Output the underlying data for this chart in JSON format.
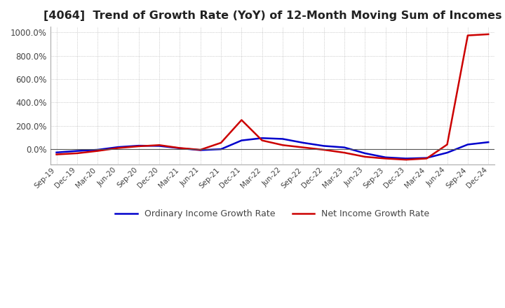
{
  "title": "[4064]  Trend of Growth Rate (YoY) of 12-Month Moving Sum of Incomes",
  "title_fontsize": 11.5,
  "ylim": [
    -130,
    1050
  ],
  "yticks": [
    0.0,
    200.0,
    400.0,
    600.0,
    800.0,
    1000.0
  ],
  "background_color": "#ffffff",
  "grid_color": "#aaaaaa",
  "x_labels": [
    "Sep-19",
    "Dec-19",
    "Mar-20",
    "Jun-20",
    "Sep-20",
    "Dec-20",
    "Mar-21",
    "Jun-21",
    "Sep-21",
    "Dec-21",
    "Mar-22",
    "Jun-22",
    "Sep-22",
    "Dec-22",
    "Mar-23",
    "Jun-23",
    "Sep-23",
    "Dec-23",
    "Mar-24",
    "Jun-24",
    "Sep-24",
    "Dec-24"
  ],
  "legend_labels": [
    "Ordinary Income Growth Rate",
    "Net Income Growth Rate"
  ],
  "legend_colors": [
    "#0000cc",
    "#cc0000"
  ],
  "ordinary_income_growth": [
    -28,
    -15,
    -5,
    18,
    30,
    28,
    8,
    -8,
    0,
    75,
    95,
    88,
    55,
    28,
    15,
    -35,
    -70,
    -80,
    -75,
    -30,
    40,
    60
  ],
  "net_income_growth": [
    -45,
    -35,
    -15,
    10,
    25,
    35,
    10,
    -5,
    55,
    250,
    75,
    35,
    15,
    -5,
    -30,
    -65,
    -80,
    -90,
    -80,
    40,
    975,
    985
  ]
}
